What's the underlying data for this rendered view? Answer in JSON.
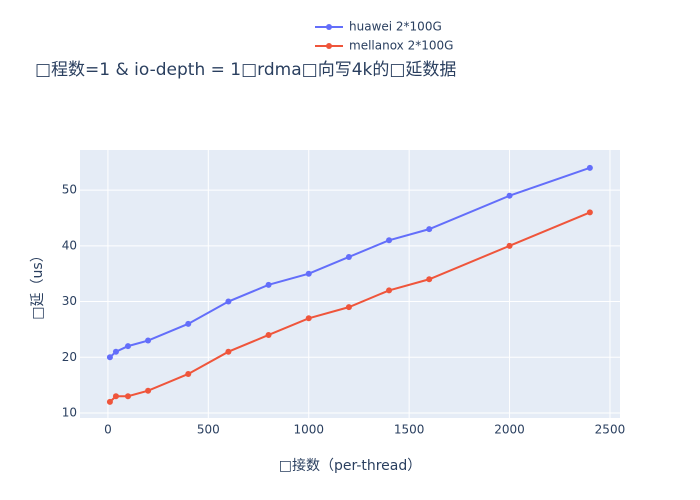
{
  "chart_data": {
    "type": "line",
    "title": "□程数=1 & io-depth = 1□rdma□向写4k的□延数据",
    "x_label": "□接数（per-thread）",
    "y_label": "□延（us）",
    "x": [
      10,
      40,
      100,
      200,
      400,
      600,
      800,
      1000,
      1200,
      1400,
      1600,
      2000,
      2400
    ],
    "series": [
      {
        "name": "huawei 2*100G",
        "color": "#636efa",
        "values": [
          20,
          21,
          22,
          23,
          26,
          30,
          33,
          35,
          38,
          41,
          43,
          49,
          54
        ]
      },
      {
        "name": "mellanox 2*100G",
        "color": "#ef553b",
        "values": [
          12,
          13,
          13,
          14,
          17,
          21,
          24,
          27,
          29,
          32,
          34,
          40,
          46
        ]
      }
    ],
    "xlim": [
      -139,
      2550
    ],
    "ylim": [
      9.1,
      57.2
    ],
    "xticks": [
      0,
      500,
      1000,
      1500,
      2000,
      2500
    ],
    "yticks": [
      10,
      20,
      30,
      40,
      50
    ],
    "grid": true
  }
}
